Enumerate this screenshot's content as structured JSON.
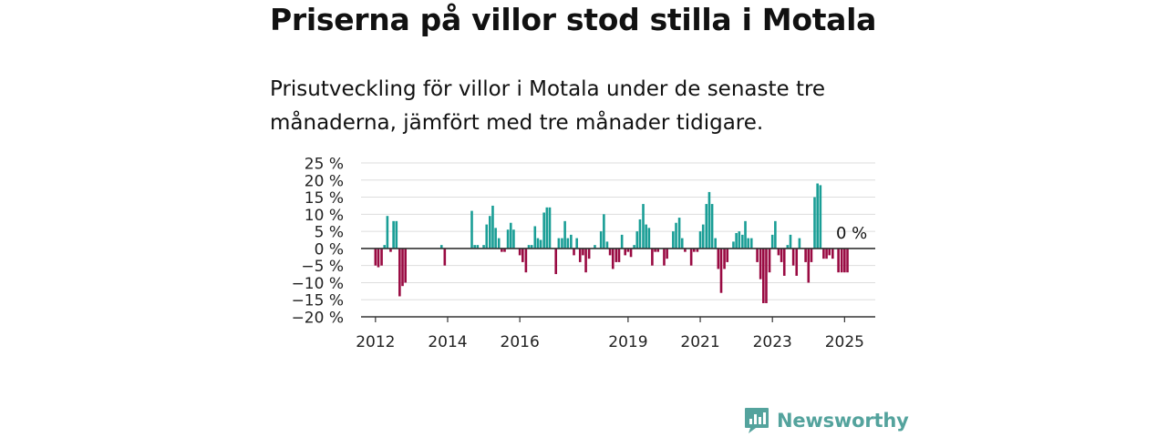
{
  "header": {
    "title": "Priserna på villor stod stilla i Motala",
    "subtitle": "Prisutveckling för villor i Motala under de senaste tre månaderna, jämfört med tre månader tidigare."
  },
  "chart_data": {
    "type": "bar",
    "title": "Priserna på villor stod stilla i Motala",
    "subtitle": "Prisutveckling för villor i Motala under de senaste tre månaderna, jämfört med tre månader tidigare.",
    "unit": "%",
    "ylim": [
      -20,
      25
    ],
    "yticks": [
      25,
      20,
      15,
      10,
      5,
      0,
      -5,
      -10,
      -15,
      -20
    ],
    "ytick_labels": [
      "25 %",
      "20 %",
      "15 %",
      "10 %",
      "5 %",
      "0 %",
      "−5 %",
      "−10 %",
      "−15 %",
      "−20 %"
    ],
    "x_range": [
      2011.6,
      2025.85
    ],
    "xticks": [
      2012,
      2014,
      2016,
      2019,
      2021,
      2023,
      2025
    ],
    "xtick_labels": [
      "2012",
      "2014",
      "2016",
      "2019",
      "2021",
      "2023",
      "2025"
    ],
    "grid": true,
    "colors": {
      "positive": "#1a9e96",
      "negative": "#990a42",
      "zero_line": "#333333",
      "grid": "#dddddd"
    },
    "annotation": {
      "text": "0 %",
      "x": 2025.7,
      "y": 0
    },
    "x": [
      2012.0,
      2012.08,
      2012.17,
      2012.25,
      2012.33,
      2012.42,
      2012.5,
      2012.58,
      2012.67,
      2012.75,
      2012.83,
      2012.92,
      2013.83,
      2013.92,
      2014.67,
      2014.75,
      2014.83,
      2014.92,
      2015.0,
      2015.08,
      2015.17,
      2015.25,
      2015.33,
      2015.42,
      2015.5,
      2015.58,
      2015.67,
      2015.75,
      2015.83,
      2015.92,
      2016.0,
      2016.08,
      2016.17,
      2016.25,
      2016.33,
      2016.42,
      2016.5,
      2016.58,
      2016.67,
      2016.75,
      2016.83,
      2016.92,
      2017.0,
      2017.08,
      2017.17,
      2017.25,
      2017.33,
      2017.42,
      2017.5,
      2017.58,
      2017.67,
      2017.75,
      2017.83,
      2017.92,
      2018.0,
      2018.08,
      2018.17,
      2018.25,
      2018.33,
      2018.42,
      2018.5,
      2018.58,
      2018.67,
      2018.75,
      2018.83,
      2018.92,
      2019.0,
      2019.08,
      2019.17,
      2019.25,
      2019.33,
      2019.42,
      2019.5,
      2019.58,
      2019.67,
      2019.75,
      2019.83,
      2019.92,
      2020.0,
      2020.08,
      2020.17,
      2020.25,
      2020.33,
      2020.42,
      2020.5,
      2020.58,
      2020.67,
      2020.75,
      2020.83,
      2020.92,
      2021.0,
      2021.08,
      2021.17,
      2021.25,
      2021.33,
      2021.42,
      2021.5,
      2021.58,
      2021.67,
      2021.75,
      2021.83,
      2021.92,
      2022.0,
      2022.08,
      2022.17,
      2022.25,
      2022.33,
      2022.42,
      2022.5,
      2022.58,
      2022.67,
      2022.75,
      2022.83,
      2022.92,
      2023.0,
      2023.08,
      2023.17,
      2023.25,
      2023.33,
      2023.42,
      2023.5,
      2023.58,
      2023.67,
      2023.75,
      2023.83,
      2023.92,
      2024.0,
      2024.08,
      2024.17,
      2024.25,
      2024.33,
      2024.42,
      2024.5,
      2024.58,
      2024.67,
      2024.75,
      2024.83,
      2024.92,
      2025.0,
      2025.08
    ],
    "values": [
      -5,
      -5.5,
      -5,
      1,
      9.5,
      -1,
      8,
      8,
      -14,
      -11,
      -10,
      0,
      1,
      -5,
      11,
      1,
      1,
      0,
      1,
      7,
      9.5,
      12.5,
      6,
      3,
      -1,
      -1,
      5.5,
      7.5,
      5.5,
      0,
      -2,
      -4,
      -7,
      1,
      1,
      6.5,
      3,
      2.5,
      10.5,
      12,
      12,
      0,
      -7.5,
      3,
      3,
      8,
      3,
      4,
      -2,
      3,
      -4,
      -2,
      -7,
      -3,
      0,
      1,
      0,
      5,
      10,
      2,
      -2,
      -6,
      -4,
      -4,
      4,
      -2,
      -1,
      -2.5,
      1,
      5,
      8.5,
      13,
      7,
      6,
      -5,
      -1,
      -1,
      0,
      -5,
      -3,
      0,
      5,
      7.5,
      9,
      3,
      -1,
      0,
      -5,
      -1,
      -1,
      5,
      7,
      13,
      16.5,
      13,
      3,
      -6,
      -13,
      -6,
      -4,
      0,
      2,
      4.5,
      5,
      4,
      8,
      3,
      3,
      0,
      -4,
      -9,
      -16,
      -16,
      -7,
      4,
      8,
      -2,
      -4,
      -8,
      1,
      4,
      -5,
      -8,
      3,
      0,
      -4,
      -10,
      -4,
      15,
      19,
      18.5,
      -3,
      -3,
      -2,
      -3,
      0,
      -7,
      -7,
      -7,
      -7
    ]
  },
  "branding": {
    "name": "Newsworthy",
    "color": "#54a39d"
  }
}
